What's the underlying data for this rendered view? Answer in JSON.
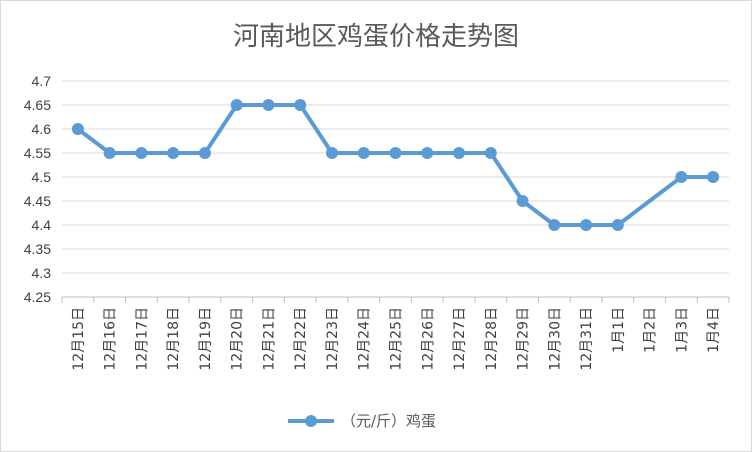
{
  "chart_data": {
    "type": "line",
    "title": "河南地区鸡蛋价格走势图",
    "categories": [
      "12月15日",
      "12月16日",
      "12月17日",
      "12月18日",
      "12月19日",
      "12月20日",
      "12月21日",
      "12月22日",
      "12月23日",
      "12月24日",
      "12月25日",
      "12月26日",
      "12月27日",
      "12月28日",
      "12月29日",
      "12月30日",
      "12月31日",
      "1月1日",
      "1月2日",
      "1月3日",
      "1月4日"
    ],
    "series": [
      {
        "name": "（元/斤）鸡蛋",
        "color": "#5b9bd5",
        "values": [
          4.6,
          4.55,
          4.55,
          4.55,
          4.55,
          4.65,
          4.65,
          4.65,
          4.55,
          4.55,
          4.55,
          4.55,
          4.55,
          4.55,
          4.45,
          4.4,
          4.4,
          4.4,
          null,
          4.5,
          4.5
        ]
      }
    ],
    "ylim": [
      4.25,
      4.7
    ],
    "yticks": [
      "4.7",
      "4.65",
      "4.6",
      "4.55",
      "4.5",
      "4.45",
      "4.4",
      "4.35",
      "4.3",
      "4.25"
    ],
    "grid": true,
    "legend": "bottom",
    "gap_handling": "connect"
  }
}
